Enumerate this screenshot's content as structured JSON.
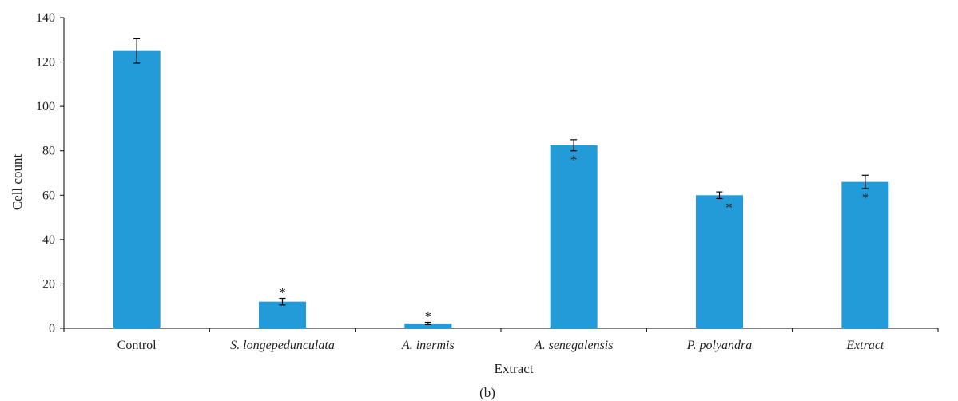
{
  "chart_data": {
    "type": "bar",
    "categories": [
      "Control",
      "S. longepedunculata",
      "A. inermis",
      "A. senegalensis",
      "P. polyandra",
      "Extract"
    ],
    "category_italic": [
      false,
      true,
      true,
      true,
      true,
      true
    ],
    "values": [
      125,
      12,
      2.2,
      82.5,
      60,
      66
    ],
    "error": [
      5.5,
      1.5,
      0.5,
      2.5,
      1.5,
      3
    ],
    "significance": [
      "",
      "*",
      "*",
      "*",
      "*",
      "*"
    ],
    "xlabel": "Extract",
    "ylabel": "Cell count",
    "ylim": [
      0,
      140
    ],
    "yticks": [
      0,
      20,
      40,
      60,
      80,
      100,
      120,
      140
    ],
    "grid": false,
    "bar_color": "#229bd8",
    "panel_label": "(b)"
  }
}
